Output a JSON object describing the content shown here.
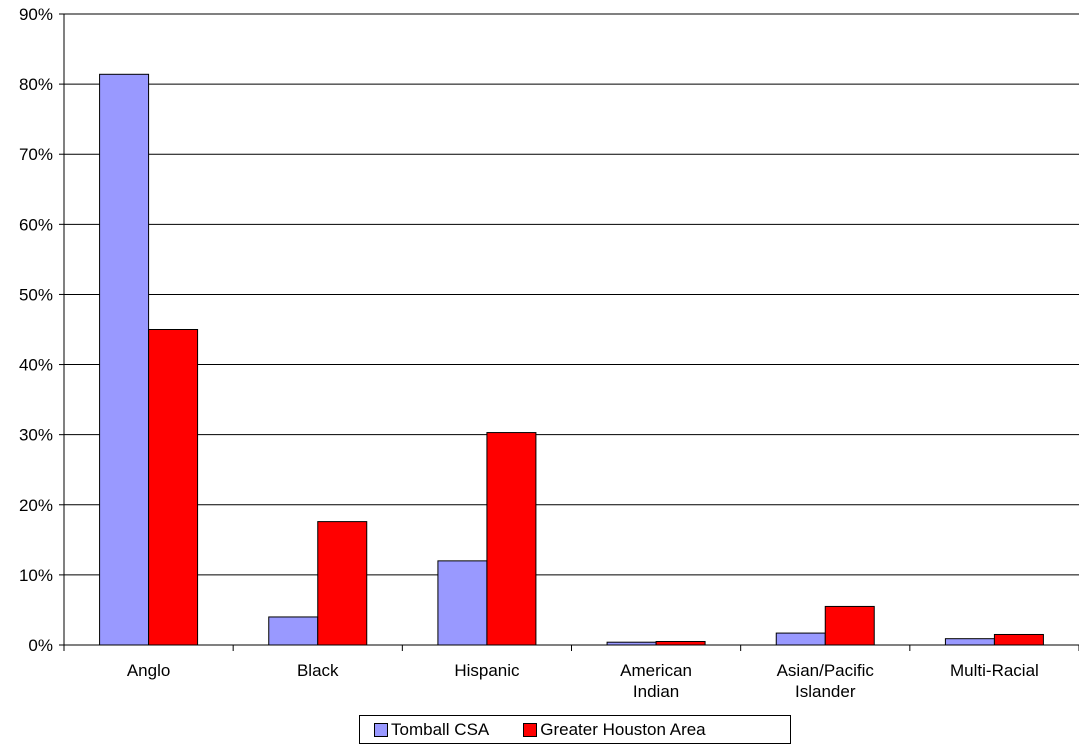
{
  "chart_data": {
    "type": "bar",
    "categories": [
      [
        "Anglo"
      ],
      [
        "Black"
      ],
      [
        "Hispanic"
      ],
      [
        "American",
        "Indian"
      ],
      [
        "Asian/Pacific",
        "Islander"
      ],
      [
        "Multi-Racial"
      ]
    ],
    "series": [
      {
        "name": "Tomball CSA",
        "color": "#9999ff",
        "values": [
          81.4,
          4.0,
          12.0,
          0.4,
          1.7,
          0.9
        ]
      },
      {
        "name": "Greater Houston Area",
        "color": "#ff0000",
        "values": [
          45.0,
          17.6,
          30.3,
          0.5,
          5.5,
          1.5
        ]
      }
    ],
    "y_ticks": [
      "0%",
      "10%",
      "20%",
      "30%",
      "40%",
      "50%",
      "60%",
      "70%",
      "80%",
      "90%"
    ],
    "ylim": [
      0,
      90
    ],
    "unit": "%",
    "grid": true,
    "legend_position": "bottom"
  }
}
